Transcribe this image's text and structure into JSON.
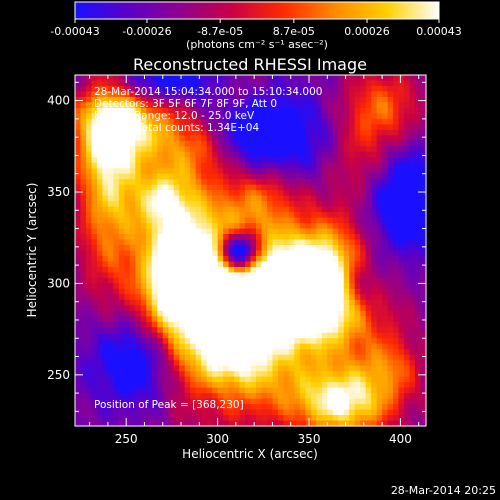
{
  "colorbar": {
    "tick_labels": [
      "-0.00043",
      "-0.00026",
      "-8.7e-05",
      "8.7e-05",
      "0.00026",
      "0.00043"
    ],
    "tick_values": [
      -0.00043,
      -0.00026,
      -8.7e-05,
      8.7e-05,
      0.00026,
      0.00043
    ],
    "range": [
      -0.00043,
      0.00043
    ],
    "units_label": "(photons cm⁻² s⁻¹ asec⁻²)",
    "colormap": [
      "#1a10ff",
      "#5a00c8",
      "#8e0090",
      "#c80046",
      "#ff2a00",
      "#ff8a00",
      "#ffd000",
      "#ffffff"
    ]
  },
  "overlay": {
    "line1": "28-Mar-2014 15:04:34.000 to 15:10:34.000",
    "line2": "Detectors: 3F 5F 6F 7F 8F 9F, Att 0",
    "line3": "Energy Range: 12.0 - 25.0 keV",
    "line4": "Clean    Total counts: 1.34E+04",
    "peak": "Position of Peak = [368,230]"
  },
  "footer": {
    "timestamp": "28-Mar-2014 20:25"
  },
  "chart_data": {
    "type": "heatmap",
    "title": "Reconstructed RHESSI Image",
    "xlabel": "Heliocentric X (arcsec)",
    "ylabel": "Heliocentric Y (arcsec)",
    "xlim": [
      222,
      414
    ],
    "ylim": [
      222,
      414
    ],
    "x_ticks": [
      250,
      300,
      350,
      400
    ],
    "y_ticks": [
      250,
      300,
      350,
      400
    ],
    "x_tick_labels": [
      "250",
      "300",
      "350",
      "400"
    ],
    "y_tick_labels": [
      "250",
      "300",
      "350",
      "400"
    ],
    "value_range": [
      -0.00043,
      0.00043
    ],
    "peak_position": [
      368,
      230
    ],
    "bright_regions": [
      {
        "x": 300,
        "y": 300,
        "sx": 22,
        "sy": 35,
        "amp": 1.0
      },
      {
        "x": 275,
        "y": 300,
        "sx": 14,
        "sy": 30,
        "amp": 0.85
      },
      {
        "x": 340,
        "y": 293,
        "sx": 28,
        "sy": 22,
        "amp": 0.85
      },
      {
        "x": 360,
        "y": 300,
        "sx": 22,
        "sy": 24,
        "amp": 0.85
      },
      {
        "x": 240,
        "y": 365,
        "sx": 12,
        "sy": 45,
        "amp": 0.8
      },
      {
        "x": 255,
        "y": 385,
        "sx": 22,
        "sy": 15,
        "amp": 0.7
      },
      {
        "x": 270,
        "y": 347,
        "sx": 12,
        "sy": 12,
        "amp": 0.55
      },
      {
        "x": 305,
        "y": 250,
        "sx": 25,
        "sy": 18,
        "amp": 0.65
      },
      {
        "x": 368,
        "y": 235,
        "sx": 20,
        "sy": 14,
        "amp": 0.95
      },
      {
        "x": 395,
        "y": 255,
        "sx": 12,
        "sy": 12,
        "amp": 0.4
      },
      {
        "x": 325,
        "y": 350,
        "sx": 14,
        "sy": 12,
        "amp": 0.35
      },
      {
        "x": 290,
        "y": 372,
        "sx": 14,
        "sy": 12,
        "amp": 0.4
      },
      {
        "x": 390,
        "y": 395,
        "sx": 16,
        "sy": 16,
        "amp": 0.55
      },
      {
        "x": 380,
        "y": 365,
        "sx": 14,
        "sy": 16,
        "amp": 0.35
      },
      {
        "x": 310,
        "y": 408,
        "sx": 14,
        "sy": 8,
        "amp": 0.3
      }
    ],
    "dark_regions": [
      {
        "x": 312,
        "y": 317,
        "sx": 8,
        "sy": 8,
        "amp": 1.5
      },
      {
        "x": 262,
        "y": 258,
        "sx": 20,
        "sy": 18,
        "amp": 0.7
      },
      {
        "x": 400,
        "y": 345,
        "sx": 15,
        "sy": 25,
        "amp": 0.6
      },
      {
        "x": 378,
        "y": 300,
        "sx": 10,
        "sy": 12,
        "amp": 0.6
      },
      {
        "x": 325,
        "y": 380,
        "sx": 25,
        "sy": 18,
        "amp": 0.55
      },
      {
        "x": 270,
        "y": 410,
        "sx": 30,
        "sy": 8,
        "amp": 0.5
      },
      {
        "x": 300,
        "y": 240,
        "sx": 14,
        "sy": 10,
        "amp": 0.25
      }
    ]
  }
}
